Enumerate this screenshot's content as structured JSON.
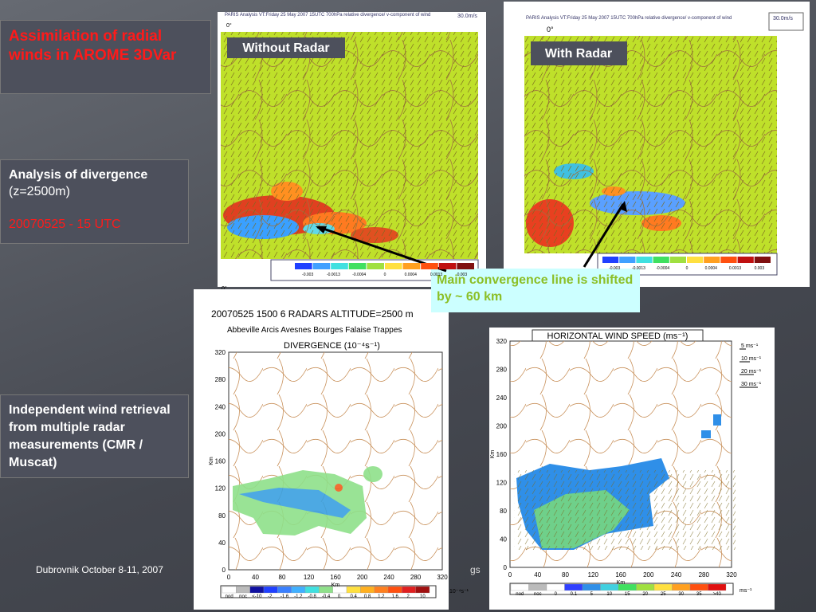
{
  "sidebar": {
    "title": "Assimilation of radial winds in AROME 3DVar",
    "analysis": {
      "heading": "Analysis of divergence",
      "subheading": "(z=2500m)",
      "date": "20070525 - 15 UTC"
    },
    "retrieval": "Independent wind retrieval from multiple radar measurements (CMR / Muscat)"
  },
  "panels": {
    "without_radar": {
      "label": "Without Radar",
      "header": "PARIS Analysis VT:Friday 25 May 2007 15UTC 700hPa relative divergence/ v-component of wind",
      "scale": "30.0m/s",
      "lon": "0°",
      "colorbar": [
        "-0.003",
        "-0.0013",
        "-0.0004",
        "0",
        "0.0004",
        "0.0013",
        "0.003"
      ]
    },
    "with_radar": {
      "label": "With Radar",
      "header": "PARIS Analysis VT:Friday 25 May 2007 15UTC 700hPa relative divergence/ v-component of wind",
      "scale": "30.0m/s",
      "lon": "0°",
      "colorbar": [
        "-0.003",
        "-0.0013",
        "-0.0004",
        "0",
        "0.0004",
        "0.0013",
        "0.003"
      ]
    }
  },
  "callout": "Main convergence line is shifted by ~ 60 km",
  "divergence_plot": {
    "title": "20070525 1500   6 RADARS  ALTITUDE=2500 m",
    "stations": "Abbeville Arcis Avesnes Bourges Falaise Trappes",
    "quantity": "DIVERGENCE (10⁻⁴s⁻¹)",
    "ticks": [
      "0",
      "40",
      "80",
      "120",
      "160",
      "200",
      "240",
      "280",
      "320"
    ],
    "axis_label": "Km",
    "legend": [
      "nod",
      "noc",
      "<-10",
      "-2.",
      "-1.6",
      "-1.2",
      "-0.8",
      "-0.4",
      "0.",
      "0.4",
      "0.8",
      "1.2",
      "1.6",
      "2.",
      "10"
    ],
    "unit": "10⁻⁴s⁻¹"
  },
  "wind_plot": {
    "title": "HORIZONTAL WIND SPEED (ms⁻¹)",
    "ticks": [
      "0",
      "40",
      "80",
      "120",
      "160",
      "200",
      "240",
      "280",
      "320"
    ],
    "axis_label": "Km",
    "arrows": [
      "5 ms⁻¹",
      "10 ms⁻¹",
      "20 ms⁻¹",
      "30 ms⁻¹"
    ],
    "legend": [
      "nod",
      "noc",
      "0",
      "0.1",
      "5",
      "10",
      "15",
      "20",
      "25",
      "30",
      "35",
      ">40"
    ],
    "unit": "ms⁻¹"
  },
  "footer": {
    "left": "Dubrovnik October 8-11, 2007",
    "right": "gs"
  }
}
